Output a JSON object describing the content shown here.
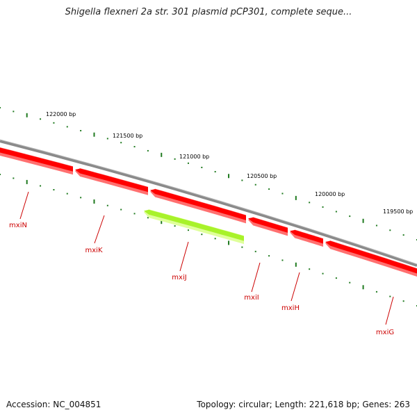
{
  "title": "Shigella flexneri 2a str. 301 plasmid pCP301, complete seque...",
  "footer": {
    "accession": "Accession: NC_004851",
    "topology": "Topology: circular; Length: 221,618 bp; Genes: 263"
  },
  "colors": {
    "backbone": "#8a8a8a",
    "gene": "#ff0000",
    "gene_light": "#ff7070",
    "gene_highlight": "#a8f22a",
    "gene_highlight_light": "#dfff9a",
    "tick": "#1f7a1f",
    "label": "#cc0000"
  },
  "ticks": [
    {
      "label": "122000 bp"
    },
    {
      "label": "121500 bp"
    },
    {
      "label": "121000 bp"
    },
    {
      "label": "120500 bp"
    },
    {
      "label": "120000 bp"
    },
    {
      "label": "119500 bp"
    }
  ],
  "genes": [
    {
      "name": "mxiN",
      "highlight": false
    },
    {
      "name": "mxiK",
      "highlight": false
    },
    {
      "name": "mxiJ",
      "highlight": true
    },
    {
      "name": "mxiI",
      "highlight": false
    },
    {
      "name": "mxiH",
      "highlight": false
    },
    {
      "name": "mxiG",
      "highlight": false
    }
  ]
}
